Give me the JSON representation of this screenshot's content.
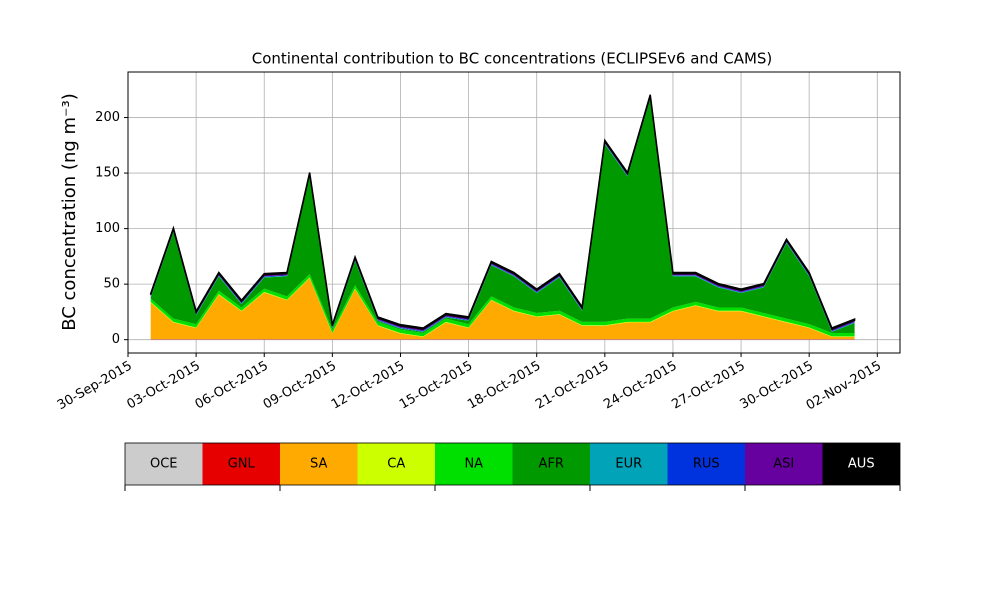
{
  "chart_data": {
    "type": "stacked_area",
    "title": "Continental contribution to BC concentrations (ECLIPSEv6 and CAMS)",
    "ylabel": "BC concentration (ng m⁻³)",
    "x": [
      "2015-10-01",
      "2015-10-02",
      "2015-10-03",
      "2015-10-04",
      "2015-10-05",
      "2015-10-06",
      "2015-10-07",
      "2015-10-08",
      "2015-10-09",
      "2015-10-10",
      "2015-10-11",
      "2015-10-12",
      "2015-10-13",
      "2015-10-14",
      "2015-10-15",
      "2015-10-16",
      "2015-10-17",
      "2015-10-18",
      "2015-10-19",
      "2015-10-20",
      "2015-10-21",
      "2015-10-22",
      "2015-10-23",
      "2015-10-24",
      "2015-10-25",
      "2015-10-26",
      "2015-10-27",
      "2015-10-28",
      "2015-10-29",
      "2015-10-30",
      "2015-10-31",
      "2015-11-01"
    ],
    "series": [
      {
        "name": "OCE",
        "color": "#cccccc",
        "values": [
          0.2,
          0.2,
          0.2,
          0.2,
          0.2,
          0.2,
          0.2,
          0.2,
          0.2,
          0.2,
          0.2,
          0.2,
          0.2,
          0.2,
          0.2,
          0.2,
          0.2,
          0.2,
          0.2,
          0.2,
          0.2,
          0.2,
          0.2,
          0.2,
          0.2,
          0.2,
          0.2,
          0.2,
          0.2,
          0.2,
          0.2,
          0.2
        ]
      },
      {
        "name": "GNL",
        "color": "#e60000",
        "values": [
          0.3,
          0.3,
          0.3,
          0.3,
          0.3,
          0.3,
          0.3,
          0.3,
          0.3,
          0.3,
          0.3,
          0.3,
          0.3,
          0.3,
          0.3,
          0.3,
          0.3,
          0.3,
          0.3,
          0.3,
          0.3,
          0.3,
          0.3,
          0.3,
          0.3,
          0.3,
          0.3,
          0.3,
          0.3,
          0.3,
          0.3,
          0.3
        ]
      },
      {
        "name": "SA",
        "color": "#ffaa00",
        "values": [
          33,
          15,
          10,
          40,
          25,
          42,
          35,
          55,
          5,
          45,
          12,
          5,
          2,
          15,
          10,
          35,
          25,
          20,
          22,
          12,
          12,
          15,
          15,
          25,
          30,
          25,
          25,
          20,
          15,
          10,
          2,
          2
        ]
      },
      {
        "name": "CA",
        "color": "#ccff00",
        "values": [
          0.5,
          0.5,
          0.5,
          0.5,
          0.5,
          0.5,
          0.5,
          0.5,
          0.5,
          0.5,
          0.5,
          0.5,
          0.5,
          0.5,
          0.5,
          0.5,
          0.5,
          0.5,
          0.5,
          0.5,
          0.5,
          0.5,
          0.5,
          0.5,
          0.5,
          0.5,
          0.5,
          0.5,
          0.5,
          0.5,
          0.5,
          0.5
        ]
      },
      {
        "name": "NA",
        "color": "#00e000",
        "values": [
          3,
          3,
          3,
          3,
          3,
          3,
          3,
          3,
          3,
          3,
          3,
          3,
          3,
          3,
          3,
          3,
          3,
          3,
          3,
          3,
          3,
          3,
          3,
          3,
          3,
          3,
          3,
          3,
          3,
          3,
          3,
          3
        ]
      },
      {
        "name": "AFR",
        "color": "#009a00",
        "values": [
          1,
          78,
          8,
          13,
          3,
          10,
          18,
          88,
          1,
          22,
          1,
          1,
          1,
          1,
          3,
          28,
          28,
          18,
          30,
          10,
          160,
          128,
          198,
          28,
          23,
          18,
          13,
          23,
          68,
          43,
          1,
          9
        ]
      },
      {
        "name": "EUR",
        "color": "#00a3b8",
        "values": [
          0.5,
          0.5,
          0.5,
          0.5,
          0.5,
          0.5,
          0.5,
          0.5,
          0.5,
          0.5,
          0.5,
          0.5,
          0.5,
          0.5,
          0.5,
          0.5,
          0.5,
          0.5,
          0.5,
          0.5,
          0.5,
          0.5,
          0.5,
          0.5,
          0.5,
          0.5,
          0.5,
          0.5,
          0.5,
          0.5,
          0.5,
          0.5
        ]
      },
      {
        "name": "RUS",
        "color": "#0033dd",
        "values": [
          0.5,
          0.5,
          0.5,
          0.5,
          0.5,
          0.5,
          0.5,
          0.5,
          0.5,
          0.5,
          0.5,
          0.5,
          0.5,
          0.5,
          0.5,
          0.5,
          0.5,
          0.5,
          0.5,
          0.5,
          0.5,
          0.5,
          0.5,
          0.5,
          0.5,
          0.5,
          0.5,
          0.5,
          0.5,
          0.5,
          0.5,
          0.5
        ]
      },
      {
        "name": "ASI",
        "color": "#66009e",
        "values": [
          1.5,
          1.5,
          1.5,
          1.5,
          1.5,
          1.5,
          1.5,
          1.5,
          1.5,
          1.5,
          1.5,
          1.5,
          1.5,
          1.5,
          1.5,
          1.5,
          1.5,
          1.5,
          1.5,
          1.5,
          1.5,
          1.5,
          1.5,
          1.5,
          1.5,
          1.5,
          1.5,
          1.5,
          1.5,
          1.5,
          1.5,
          1.5
        ]
      },
      {
        "name": "AUS",
        "color": "#000000",
        "values": [
          1,
          1,
          1,
          1,
          1,
          1,
          1,
          1,
          1,
          1,
          1,
          1,
          1,
          1,
          1,
          1,
          1,
          1,
          1,
          1,
          1,
          1,
          1,
          1,
          1,
          1,
          1,
          1,
          1,
          1,
          1,
          1
        ]
      }
    ],
    "xlim": [
      "2015-09-30",
      "2015-11-03"
    ],
    "xticks": [
      {
        "value": "2015-09-30",
        "label": "30-Sep-2015"
      },
      {
        "value": "2015-10-03",
        "label": "03-Oct-2015"
      },
      {
        "value": "2015-10-06",
        "label": "06-Oct-2015"
      },
      {
        "value": "2015-10-09",
        "label": "09-Oct-2015"
      },
      {
        "value": "2015-10-12",
        "label": "12-Oct-2015"
      },
      {
        "value": "2015-10-15",
        "label": "15-Oct-2015"
      },
      {
        "value": "2015-10-18",
        "label": "18-Oct-2015"
      },
      {
        "value": "2015-10-21",
        "label": "21-Oct-2015"
      },
      {
        "value": "2015-10-24",
        "label": "24-Oct-2015"
      },
      {
        "value": "2015-10-27",
        "label": "27-Oct-2015"
      },
      {
        "value": "2015-10-30",
        "label": "30-Oct-2015"
      },
      {
        "value": "2015-11-02",
        "label": "02-Nov-2015"
      }
    ],
    "ylim": [
      -12,
      241
    ],
    "yticks": [
      0,
      50,
      100,
      150,
      200
    ],
    "grid": true,
    "legend": "bottom"
  }
}
